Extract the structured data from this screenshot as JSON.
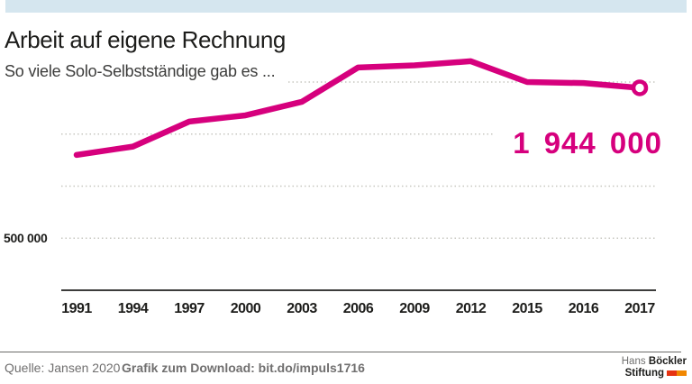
{
  "chart_data": {
    "type": "line",
    "title": "Arbeit auf eigene Rechnung",
    "subtitle": "So viele Solo-Selbstständige gab es ...",
    "categories": [
      "1991",
      "1994",
      "1997",
      "2000",
      "2003",
      "2006",
      "2009",
      "2012",
      "2015",
      "2016",
      "2017"
    ],
    "values": [
      1300000,
      1380000,
      1620000,
      1680000,
      1810000,
      2140000,
      2160000,
      2200000,
      2000000,
      1990000,
      1944000
    ],
    "end_value_label": "1 944 000",
    "ytick_label": "500 000",
    "ylim": [
      0,
      2250000
    ],
    "gridline_values": [
      500000,
      1000000,
      1500000,
      2000000
    ],
    "grid": "dotted-horizontal",
    "legend": "none",
    "end_marker": "open-circle"
  },
  "footer": {
    "source": "Quelle: Jansen 2020",
    "download": "Grafik zum Download: bit.do/impuls1716",
    "logo": {
      "name_regular": "Hans",
      "name_bold": "Böckler",
      "line2_bold": "Stiftung"
    }
  },
  "colors": {
    "accent": "#d6007d",
    "top_bar": "#d5e6ef",
    "axis": "#3c3c3b",
    "grid": "#c7c7c0",
    "logo_red": "#e63312",
    "logo_orange": "#f18700"
  }
}
